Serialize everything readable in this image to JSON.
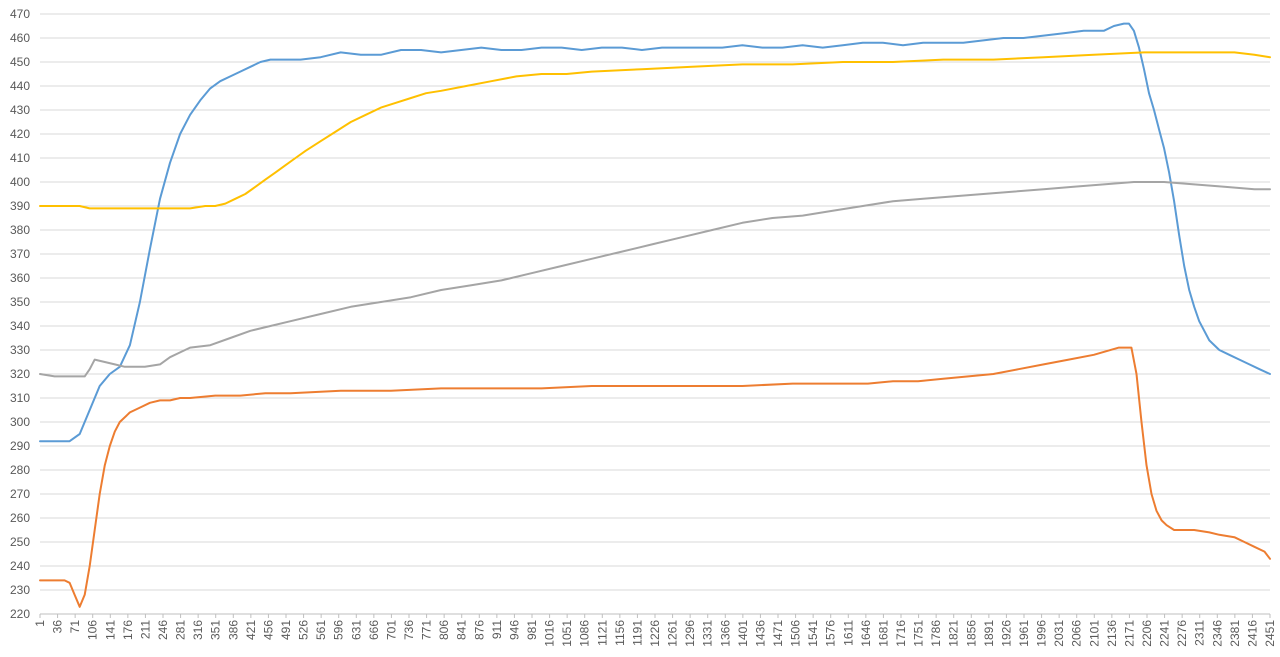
{
  "chart_data": {
    "type": "line",
    "title": "",
    "xlabel": "",
    "ylabel": "",
    "ylim": [
      220,
      470
    ],
    "y_tick_step": 10,
    "x_range": [
      1,
      2451
    ],
    "x_tick_labels": [
      "1",
      "36",
      "71",
      "106",
      "141",
      "176",
      "211",
      "246",
      "281",
      "316",
      "351",
      "386",
      "421",
      "456",
      "491",
      "526",
      "561",
      "596",
      "631",
      "666",
      "701",
      "736",
      "771",
      "806",
      "841",
      "876",
      "911",
      "946",
      "981",
      "1016",
      "1051",
      "1086",
      "1121",
      "1156",
      "1191",
      "1226",
      "1261",
      "1296",
      "1331",
      "1366",
      "1401",
      "1436",
      "1471",
      "1506",
      "1541",
      "1576",
      "1611",
      "1646",
      "1681",
      "1716",
      "1751",
      "1786",
      "1821",
      "1856",
      "1891",
      "1926",
      "1961",
      "1996",
      "2031",
      "2066",
      "2101",
      "2136",
      "2171",
      "2206",
      "2241",
      "2276",
      "2311",
      "2346",
      "2381",
      "2416",
      "2451"
    ],
    "grid": "horizontal",
    "legend": "none",
    "series": [
      {
        "color": "#5b9bd5",
        "x": [
          1,
          40,
          60,
          80,
          100,
          120,
          140,
          160,
          180,
          200,
          220,
          240,
          260,
          280,
          300,
          320,
          340,
          360,
          380,
          400,
          420,
          440,
          460,
          490,
          520,
          560,
          600,
          640,
          680,
          720,
          760,
          800,
          840,
          880,
          920,
          960,
          1000,
          1040,
          1080,
          1120,
          1160,
          1200,
          1240,
          1280,
          1320,
          1360,
          1400,
          1440,
          1480,
          1520,
          1560,
          1600,
          1640,
          1680,
          1720,
          1760,
          1800,
          1840,
          1880,
          1920,
          1960,
          2000,
          2040,
          2080,
          2120,
          2140,
          2160,
          2170,
          2180,
          2190,
          2200,
          2210,
          2220,
          2230,
          2240,
          2250,
          2260,
          2270,
          2280,
          2290,
          2300,
          2310,
          2330,
          2350,
          2370,
          2390,
          2410,
          2430,
          2451
        ],
        "y": [
          292,
          292,
          292,
          295,
          305,
          315,
          320,
          323,
          332,
          350,
          372,
          393,
          408,
          420,
          428,
          434,
          439,
          442,
          444,
          446,
          448,
          450,
          451,
          451,
          451,
          452,
          454,
          453,
          453,
          455,
          455,
          454,
          455,
          456,
          455,
          455,
          456,
          456,
          455,
          456,
          456,
          455,
          456,
          456,
          456,
          456,
          457,
          456,
          456,
          457,
          456,
          457,
          458,
          458,
          457,
          458,
          458,
          458,
          459,
          460,
          460,
          461,
          462,
          463,
          463,
          465,
          466,
          466,
          463,
          456,
          447,
          437,
          430,
          422,
          414,
          404,
          392,
          378,
          365,
          355,
          348,
          342,
          334,
          330,
          328,
          326,
          324,
          322,
          320
        ]
      },
      {
        "color": "#ed7d31",
        "x": [
          1,
          30,
          50,
          60,
          70,
          80,
          90,
          100,
          110,
          120,
          130,
          140,
          150,
          160,
          180,
          200,
          220,
          240,
          260,
          280,
          300,
          350,
          400,
          450,
          500,
          600,
          700,
          800,
          900,
          1000,
          1100,
          1200,
          1300,
          1400,
          1500,
          1600,
          1650,
          1700,
          1750,
          1800,
          1850,
          1900,
          1950,
          2000,
          2050,
          2100,
          2150,
          2175,
          2185,
          2195,
          2205,
          2215,
          2225,
          2235,
          2245,
          2260,
          2300,
          2330,
          2350,
          2380,
          2400,
          2420,
          2440,
          2451
        ],
        "y": [
          234,
          234,
          234,
          233,
          228,
          223,
          228,
          240,
          255,
          270,
          282,
          290,
          296,
          300,
          304,
          306,
          308,
          309,
          309,
          310,
          310,
          311,
          311,
          312,
          312,
          313,
          313,
          314,
          314,
          314,
          315,
          315,
          315,
          315,
          316,
          316,
          316,
          317,
          317,
          318,
          319,
          320,
          322,
          324,
          326,
          328,
          331,
          331,
          320,
          300,
          282,
          270,
          263,
          259,
          257,
          255,
          255,
          254,
          253,
          252,
          250,
          248,
          246,
          243
        ]
      },
      {
        "color": "#a5a5a5",
        "x": [
          1,
          30,
          60,
          90,
          100,
          110,
          130,
          150,
          170,
          190,
          210,
          240,
          260,
          280,
          300,
          340,
          380,
          420,
          460,
          500,
          560,
          620,
          680,
          740,
          800,
          860,
          920,
          980,
          1040,
          1100,
          1160,
          1220,
          1280,
          1340,
          1400,
          1460,
          1520,
          1580,
          1640,
          1700,
          1760,
          1820,
          1880,
          1940,
          2000,
          2060,
          2120,
          2180,
          2240,
          2300,
          2360,
          2420,
          2451
        ],
        "y": [
          320,
          319,
          319,
          319,
          322,
          326,
          325,
          324,
          323,
          323,
          323,
          324,
          327,
          329,
          331,
          332,
          335,
          338,
          340,
          342,
          345,
          348,
          350,
          352,
          355,
          357,
          359,
          362,
          365,
          368,
          371,
          374,
          377,
          380,
          383,
          385,
          386,
          388,
          390,
          392,
          393,
          394,
          395,
          396,
          397,
          398,
          399,
          400,
          400,
          399,
          398,
          397,
          397
        ]
      },
      {
        "color": "#ffc000",
        "x": [
          1,
          60,
          80,
          100,
          150,
          200,
          250,
          300,
          330,
          350,
          370,
          390,
          410,
          430,
          450,
          470,
          490,
          510,
          530,
          560,
          590,
          620,
          650,
          680,
          710,
          740,
          770,
          800,
          850,
          900,
          950,
          1000,
          1050,
          1100,
          1200,
          1300,
          1400,
          1500,
          1600,
          1700,
          1800,
          1900,
          2000,
          2100,
          2200,
          2300,
          2380,
          2420,
          2451
        ],
        "y": [
          390,
          390,
          390,
          389,
          389,
          389,
          389,
          389,
          390,
          390,
          391,
          393,
          395,
          398,
          401,
          404,
          407,
          410,
          413,
          417,
          421,
          425,
          428,
          431,
          433,
          435,
          437,
          438,
          440,
          442,
          444,
          445,
          445,
          446,
          447,
          448,
          449,
          449,
          450,
          450,
          451,
          451,
          452,
          453,
          454,
          454,
          454,
          453,
          452
        ]
      }
    ]
  }
}
